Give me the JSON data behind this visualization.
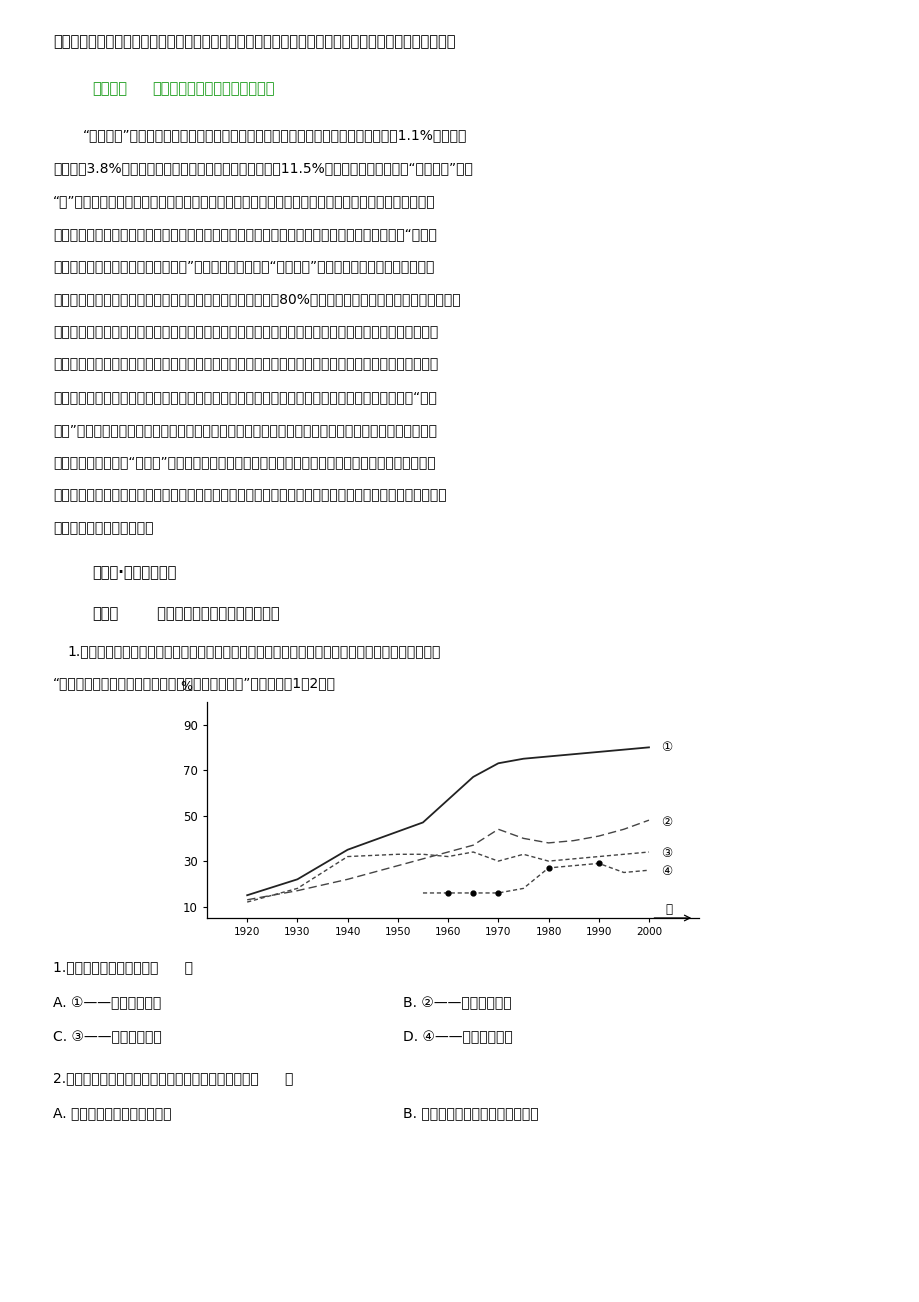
{
  "bg_color": "#ffffff",
  "page_width": 9.2,
  "page_height": 13.02,
  "para1": "产生了一定的问题，要有针对性的制定对策，消除不利于发展的问题，同时为其他地区的发展提供借鉴。",
  "section1_label": "微拓展：",
  "section1_title": "区域工业化和城市化的典型模式",
  "body_text": [
    "“浙江模式”的形成有其自身的地理、历史条件和文化基因。浙江土地面积仅为全国的1.1%，人口仅",
    "为全国的3.8%，人均资源拥有量仅相当于全国平均水平的11.5%，居全国倒数第三位。“浙江模式”是被",
    "“逼”出来的。地瘠人贫中，许多人被迫外出创业谋生，经商技能快速提高、经商经验不断丰富，大量的",
    "商业信息和商业资本被带回家乡，促成了一大批个体和私营企业的诞生。艰苦的创业过程催生了“自强不",
    "息、坚韧不拔、勇于创新、讲求实效”的浙江精神，这也是“浙江模式”得以形成的文化基因。在民营经",
    "济最发达的温州、台州、义乌等地区，近几年城市建设资金的80%以上都来自于民间。活跃而充裕的民间资",
    "本，已渗透到浙江的各行各业，并逐步形成了民众投资、民间营运、全民分享的自我循环发展体系，给浙",
    "江的经济繁荣提供了源源不断的动力。民间资本主导的自主型、创业型、市场导向型发展。浙江经济的发",
    "展不是主要依赖于政府大规模投资、国家地区优惠政策、或得到政府大量补贴的外国直接投资。在“浙江",
    "模式”的发展过程中，又逐步形成了市场先发、多种所有制经济共同发展、家族企业、产业集群，以及企",
    "业、商人、商品市场“走出去”、融入全球市场网络、区域经济管理体制创新等方方面面的特色和优势，",
    "这些特色和优势并非一个个孤立的方面，而是一个有机的整体，不是一个个突发的事件，而是具有深刻社会",
    "历史根源的经济社会变革。"
  ],
  "section2_label": "过能力·名校模拟欣赏",
  "section3_label": "考点一",
  "section3_title": " 区域工业化和城市化的推进过程",
  "q1_text": "1.工业化率是工业增加值占全部生产总值的比重，城市化率为城镇常住人口占总人口的比重。下图是",
  "q1_text2": "“中国和日本的工业化率与城市化率变化曲线示意图”。读图完成1～2题。",
  "line1_x": [
    1920,
    1930,
    1940,
    1950,
    1955,
    1960,
    1965,
    1970,
    1975,
    1980,
    1985,
    1990,
    1995,
    2000
  ],
  "line1_y": [
    15,
    22,
    35,
    43,
    47,
    57,
    67,
    73,
    75,
    76,
    77,
    78,
    79,
    80
  ],
  "line2_x": [
    1920,
    1930,
    1940,
    1950,
    1955,
    1960,
    1965,
    1970,
    1975,
    1980,
    1985,
    1990,
    1995,
    2000
  ],
  "line2_y": [
    13,
    17,
    22,
    28,
    31,
    34,
    37,
    44,
    40,
    38,
    39,
    41,
    44,
    48
  ],
  "line3_x": [
    1920,
    1930,
    1940,
    1950,
    1955,
    1960,
    1965,
    1970,
    1975,
    1980,
    1985,
    1990,
    1995,
    2000
  ],
  "line3_y": [
    12,
    18,
    32,
    33,
    33,
    32,
    34,
    30,
    33,
    30,
    31,
    32,
    33,
    34
  ],
  "line4_x": [
    1955,
    1960,
    1965,
    1970,
    1975,
    1980,
    1985,
    1990,
    1995,
    2000
  ],
  "line4_y": [
    16,
    16,
    16,
    16,
    18,
    27,
    28,
    29,
    25,
    26
  ],
  "line4_marker_x": [
    1960,
    1965,
    1970,
    1980,
    1990
  ],
  "line4_marker_y": [
    16,
    16,
    16,
    27,
    29
  ],
  "q1_choices_label": "1.下列对应关系正确的是（      ）",
  "q1_A": "A. ①——日本工业化率",
  "q1_B": "B. ②——中国工业化率",
  "q1_C": "C. ③——日本城市化率",
  "q1_D": "D. ④——中国城市化率",
  "q2_label": "2.关于中、日两国城市化和工业化的分析，正确的是（      ）",
  "q2_A": "A. 中国的城市化进程快于日本",
  "q2_B": "B. 日本工业生产总值呈现下降趋势"
}
